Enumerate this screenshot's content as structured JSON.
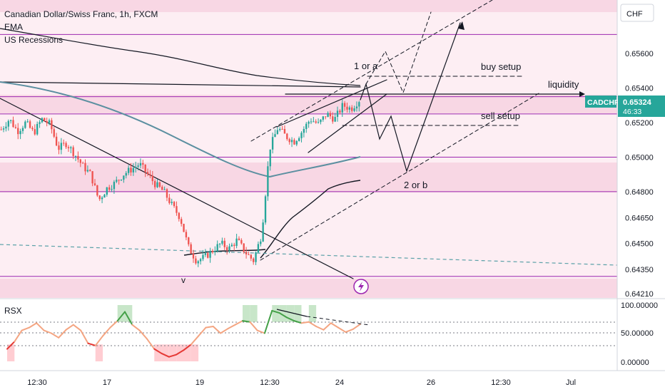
{
  "header": {
    "title": "Canadian Dollar/Swiss Franc, 1h, FXCM",
    "indicators": [
      "EMA",
      "US Recessions"
    ]
  },
  "price_axis": {
    "currency_button": "CHF",
    "ticks": [
      "0.65600",
      "0.65400",
      "0.65200",
      "0.65000",
      "0.64800",
      "0.64650",
      "0.64500",
      "0.64350",
      "0.64210"
    ]
  },
  "price_badge": {
    "symbol": "CADCHF",
    "price": "0.65324",
    "countdown": "46:33"
  },
  "time_axis": {
    "ticks": [
      "12:30",
      "17",
      "19",
      "12:30",
      "24",
      "26",
      "12:30",
      "Jul"
    ]
  },
  "annotations": {
    "wave_top": "1 or a",
    "wave_bottom": "2 or b",
    "buy_setup": "buy setup",
    "sell_setup": "sell setup",
    "liquidity": "liquidity",
    "low_marker": "v"
  },
  "rsx_panel": {
    "label": "RSX",
    "ticks": [
      "100.00000",
      "50.00000",
      "0.00000"
    ]
  },
  "colors": {
    "bull": "#26a69a",
    "bear": "#ef5350",
    "zone_fill": "#f8d7e4",
    "zone_line": "#9c27b0",
    "ema_teal": "#5b8fa0",
    "rsx_bull": "#43a047",
    "rsx_bear": "#e53935",
    "rsx_mid": "#f4a582"
  },
  "chart_data": {
    "type": "candlestick",
    "symbol": "CADCHF",
    "timeframe": "1h",
    "source": "FXCM",
    "ylim": [
      0.6421,
      0.6578
    ],
    "horizontal_levels": [
      0.6571,
      0.6535,
      0.6525,
      0.65,
      0.648,
      0.6431
    ],
    "ohlc_path": [
      {
        "t": 0,
        "p": 0.6516
      },
      {
        "t": 2,
        "p": 0.6522
      },
      {
        "t": 4,
        "p": 0.6515
      },
      {
        "t": 6,
        "p": 0.652
      },
      {
        "t": 8,
        "p": 0.6514
      },
      {
        "t": 10,
        "p": 0.6522
      },
      {
        "t": 12,
        "p": 0.6519
      },
      {
        "t": 14,
        "p": 0.6505
      },
      {
        "t": 16,
        "p": 0.6508
      },
      {
        "t": 18,
        "p": 0.6502
      },
      {
        "t": 20,
        "p": 0.6495
      },
      {
        "t": 22,
        "p": 0.649
      },
      {
        "t": 24,
        "p": 0.6475
      },
      {
        "t": 26,
        "p": 0.6482
      },
      {
        "t": 28,
        "p": 0.6485
      },
      {
        "t": 30,
        "p": 0.649
      },
      {
        "t": 32,
        "p": 0.6493
      },
      {
        "t": 34,
        "p": 0.6496
      },
      {
        "t": 36,
        "p": 0.649
      },
      {
        "t": 38,
        "p": 0.6484
      },
      {
        "t": 40,
        "p": 0.648
      },
      {
        "t": 42,
        "p": 0.6472
      },
      {
        "t": 44,
        "p": 0.6465
      },
      {
        "t": 46,
        "p": 0.6448
      },
      {
        "t": 48,
        "p": 0.644
      },
      {
        "t": 50,
        "p": 0.6442
      },
      {
        "t": 52,
        "p": 0.6446
      },
      {
        "t": 54,
        "p": 0.645
      },
      {
        "t": 56,
        "p": 0.6447
      },
      {
        "t": 58,
        "p": 0.6452
      },
      {
        "t": 60,
        "p": 0.6445
      },
      {
        "t": 62,
        "p": 0.644
      },
      {
        "t": 64,
        "p": 0.6455
      },
      {
        "t": 66,
        "p": 0.6505
      },
      {
        "t": 68,
        "p": 0.6517
      },
      {
        "t": 70,
        "p": 0.6512
      },
      {
        "t": 72,
        "p": 0.6509
      },
      {
        "t": 74,
        "p": 0.6515
      },
      {
        "t": 76,
        "p": 0.6522
      },
      {
        "t": 78,
        "p": 0.6519
      },
      {
        "t": 80,
        "p": 0.6525
      },
      {
        "t": 82,
        "p": 0.6522
      },
      {
        "t": 84,
        "p": 0.653
      },
      {
        "t": 86,
        "p": 0.6528
      },
      {
        "t": 88,
        "p": 0.6533
      }
    ],
    "rsx": {
      "ylim": [
        0,
        100
      ],
      "levels": [
        70,
        50,
        30
      ],
      "values": [
        22,
        35,
        55,
        60,
        68,
        55,
        50,
        42,
        56,
        65,
        55,
        32,
        28,
        45,
        60,
        72,
        88,
        65,
        55,
        40,
        22,
        14,
        8,
        12,
        20,
        30,
        45,
        60,
        62,
        50,
        58,
        65,
        72,
        70,
        55,
        50,
        90,
        86,
        78,
        72,
        68,
        70,
        62,
        56,
        68,
        60,
        52,
        57,
        66
      ]
    }
  }
}
